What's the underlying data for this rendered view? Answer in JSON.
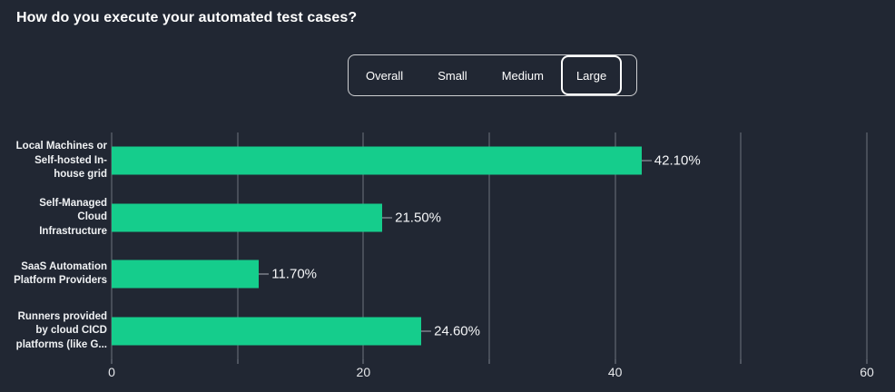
{
  "title": "How do you execute your automated test cases?",
  "tabs": {
    "items": [
      {
        "label": "Overall",
        "selected": false
      },
      {
        "label": "Small",
        "selected": false
      },
      {
        "label": "Medium",
        "selected": false
      },
      {
        "label": "Large",
        "selected": true
      }
    ]
  },
  "colors": {
    "background": "#212733",
    "bar": "#15cd8c",
    "gridline": "#6d737d",
    "axis_text": "#e5e7ea",
    "category_text": "#eff1f3",
    "value_text": "#f4f5f7",
    "connector": "#a9aeb6",
    "tab_border_selected": "#ffffff"
  },
  "chart_data": {
    "type": "bar",
    "orientation": "horizontal",
    "title": "How do you execute your automated test cases?",
    "categories": [
      "Local Machines or Self-hosted In-house grid",
      "Self-Managed Cloud Infrastructure",
      "SaaS Automation Platform Providers",
      "Runners provided by cloud CICD platforms (like G..."
    ],
    "category_lines": [
      [
        "Local Machines or",
        "Self-hosted In-",
        "house grid"
      ],
      [
        "Self-Managed",
        "Cloud",
        "Infrastructure"
      ],
      [
        "SaaS Automation",
        "Platform Providers"
      ],
      [
        "Runners provided",
        "by cloud CICD",
        "platforms (like G..."
      ]
    ],
    "values": [
      42.1,
      21.5,
      11.7,
      24.6
    ],
    "value_labels": [
      "42.10%",
      "21.50%",
      "11.70%",
      "24.60%"
    ],
    "xlabel": "",
    "ylabel": "",
    "xlim": [
      0,
      60
    ],
    "grid_values": [
      0,
      10,
      20,
      30,
      40,
      50,
      60
    ],
    "x_major_tick_labels": [
      "0",
      "20",
      "40",
      "60"
    ],
    "x_major_tick_values": [
      0,
      20,
      40,
      60
    ],
    "grid": true,
    "legend": false
  }
}
